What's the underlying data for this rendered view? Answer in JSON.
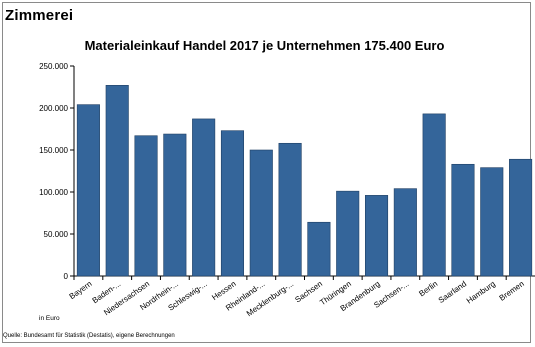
{
  "heading": "Zimmerei",
  "chart_data": {
    "type": "bar",
    "title": "Materialeinkauf Handel 2017 je Unternehmen 175.400 Euro",
    "unit_label": "in Euro",
    "source": "Quelle: Bundesamt für Statistik (Destatis), eigene Berechnungen",
    "categories": [
      "Bayern",
      "Baden-...",
      "Niedersachsen",
      "Nordrhein-...",
      "Schleswig-...",
      "Hessen",
      "Rheinland-...",
      "Mecklenburg-...",
      "Sachsen",
      "Thüringen",
      "Brandenburg",
      "Sachsen-...",
      "Berlin",
      "Saarland",
      "Hamburg",
      "Bremen"
    ],
    "values": [
      204000,
      227000,
      167000,
      169000,
      187000,
      173000,
      150000,
      158000,
      64000,
      101000,
      96000,
      104000,
      193000,
      133000,
      129000,
      139000
    ],
    "ylim": [
      0,
      250000
    ],
    "yticks": [
      0,
      50000,
      100000,
      150000,
      200000,
      250000
    ],
    "ytick_labels": [
      "0",
      "50.000",
      "100.000",
      "150.000",
      "200.000",
      "250.000"
    ],
    "bar_color": "#34659a",
    "grid": false
  }
}
